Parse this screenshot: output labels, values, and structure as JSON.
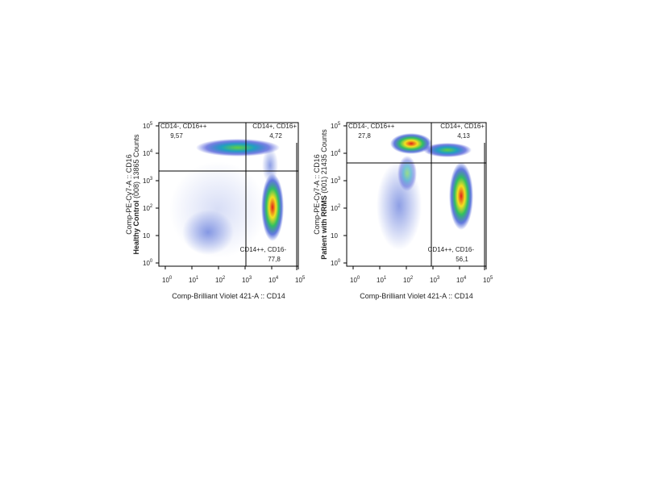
{
  "panels": [
    {
      "y_label": "Comp-PE-Cy7-A :: CD16",
      "sample_bold": "Healthy Control",
      "sample_rest": " (008) 13865 Counts",
      "x_label": "Comp-Brilliant Violet 421-A :: CD14",
      "quadrants": [
        {
          "name": "CD14-, CD16++",
          "percent": "9,57"
        },
        {
          "name": "CD14+, CD16+",
          "percent": "4,72"
        },
        {
          "name": "CD14++, CD16-",
          "percent": "77,8"
        }
      ],
      "x_ticks": [
        {
          "base": "10",
          "exp": "0"
        },
        {
          "base": "10",
          "exp": "1"
        },
        {
          "base": "10",
          "exp": "2"
        },
        {
          "base": "10",
          "exp": "3"
        },
        {
          "base": "10",
          "exp": "4"
        },
        {
          "base": "10",
          "exp": "5"
        }
      ],
      "y_ticks": [
        {
          "base": "10",
          "exp": "0"
        },
        {
          "base": "10",
          "exp": ""
        },
        {
          "base": "10",
          "exp": "2"
        },
        {
          "base": "10",
          "exp": "3"
        },
        {
          "base": "10",
          "exp": "4"
        },
        {
          "base": "10",
          "exp": "5"
        }
      ]
    },
    {
      "y_label": "Comp-PE-Cy7-A :: CD16",
      "sample_bold": "Patient with RRMS",
      "sample_rest": " (001) 21435 Counts",
      "x_label": "Comp-Brilliant Violet 421-A :: CD14",
      "quadrants": [
        {
          "name": "CD14-, CD16++",
          "percent": "27,8"
        },
        {
          "name": "CD14+, CD16+",
          "percent": "4,13"
        },
        {
          "name": "CD14++, CD16-",
          "percent": "56,1"
        }
      ],
      "x_ticks": [
        {
          "base": "10",
          "exp": "0"
        },
        {
          "base": "10",
          "exp": "1"
        },
        {
          "base": "10",
          "exp": "2"
        },
        {
          "base": "10",
          "exp": "3"
        },
        {
          "base": "10",
          "exp": "4"
        },
        {
          "base": "10",
          "exp": "5"
        }
      ],
      "y_ticks": [
        {
          "base": "10",
          "exp": "0"
        },
        {
          "base": "10",
          "exp": ""
        },
        {
          "base": "10",
          "exp": "2"
        },
        {
          "base": "10",
          "exp": "3"
        },
        {
          "base": "10",
          "exp": "4"
        },
        {
          "base": "10",
          "exp": "5"
        }
      ]
    }
  ]
}
